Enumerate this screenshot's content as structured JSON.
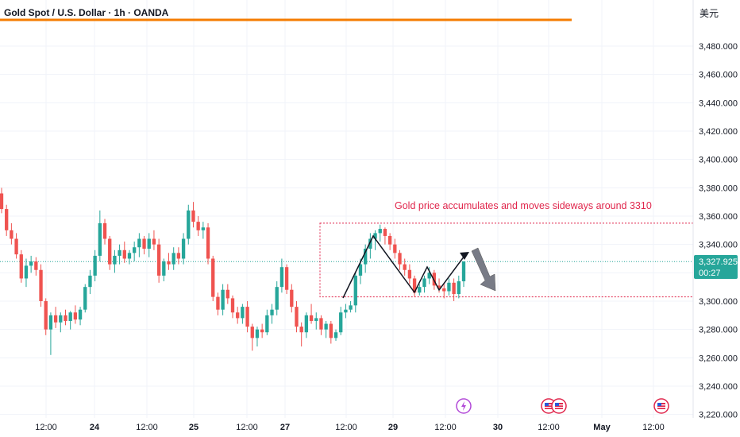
{
  "header": {
    "title": "Gold Spot / U.S. Dollar · 1h · OANDA",
    "currency": "美元"
  },
  "annotation": {
    "text": "Gold price accumulates and moves sideways around 3310"
  },
  "price_label": {
    "value": "3,327.925",
    "countdown": "00:27"
  },
  "colors": {
    "up": "#26a69a",
    "down": "#ef5350",
    "annotation": "#e0264c",
    "price_line": "#26a69a",
    "header_line": "#f57c00",
    "grid": "#f0f3fa"
  },
  "icons": {
    "event_lightning": "lightning-icon",
    "event_us": "us-flag-icon"
  },
  "chart_data": {
    "type": "candlestick",
    "title": "Gold Spot / U.S. Dollar · 1h · OANDA",
    "y_ticks": [
      3220,
      3240,
      3260,
      3280,
      3300,
      3320,
      3340,
      3360,
      3380,
      3400,
      3420,
      3440,
      3460,
      3480
    ],
    "y_tick_labels": [
      "3,220.000",
      "3,240.000",
      "3,260.000",
      "3,280.000",
      "3,300.000",
      "3,320.000",
      "3,340.000",
      "3,360.000",
      "3,380.000",
      "3,400.000",
      "3,420.000",
      "3,440.000",
      "3,460.000",
      "3,480.000"
    ],
    "ylim": [
      3217,
      3493
    ],
    "x_tick_labels": [
      "12:00",
      "24",
      "12:00",
      "25",
      "12:00",
      "27",
      "12:00",
      "29",
      "12:00",
      "30",
      "12:00",
      "May",
      "12:00"
    ],
    "x_tick_bold": [
      false,
      true,
      false,
      true,
      false,
      true,
      false,
      true,
      false,
      true,
      false,
      true,
      false
    ],
    "last_price": 3327.925,
    "box_range": {
      "y_top": 3355,
      "y_bottom": 3303
    },
    "candles_ohlc": [
      [
        3376,
        3380,
        3362,
        3365
      ],
      [
        3365,
        3368,
        3346,
        3350
      ],
      [
        3350,
        3355,
        3340,
        3344
      ],
      [
        3344,
        3348,
        3330,
        3333
      ],
      [
        3333,
        3336,
        3313,
        3316
      ],
      [
        3316,
        3330,
        3310,
        3325
      ],
      [
        3325,
        3332,
        3320,
        3328
      ],
      [
        3328,
        3331,
        3318,
        3322
      ],
      [
        3322,
        3326,
        3296,
        3300
      ],
      [
        3300,
        3302,
        3276,
        3280
      ],
      [
        3280,
        3292,
        3262,
        3290
      ],
      [
        3290,
        3296,
        3281,
        3285
      ],
      [
        3285,
        3292,
        3278,
        3290
      ],
      [
        3290,
        3294,
        3283,
        3286
      ],
      [
        3286,
        3293,
        3280,
        3292
      ],
      [
        3292,
        3297,
        3284,
        3287
      ],
      [
        3287,
        3296,
        3283,
        3294
      ],
      [
        3294,
        3312,
        3292,
        3310
      ],
      [
        3310,
        3322,
        3305,
        3318
      ],
      [
        3318,
        3336,
        3314,
        3332
      ],
      [
        3332,
        3364,
        3328,
        3355
      ],
      [
        3355,
        3358,
        3340,
        3344
      ],
      [
        3344,
        3346,
        3322,
        3326
      ],
      [
        3326,
        3336,
        3320,
        3332
      ],
      [
        3332,
        3340,
        3326,
        3336
      ],
      [
        3336,
        3342,
        3327,
        3330
      ],
      [
        3330,
        3336,
        3326,
        3334
      ],
      [
        3334,
        3342,
        3328,
        3338
      ],
      [
        3338,
        3348,
        3331,
        3344
      ],
      [
        3344,
        3346,
        3333,
        3337
      ],
      [
        3337,
        3348,
        3331,
        3344
      ],
      [
        3344,
        3350,
        3336,
        3340
      ],
      [
        3340,
        3344,
        3313,
        3318
      ],
      [
        3318,
        3330,
        3314,
        3328
      ],
      [
        3328,
        3334,
        3322,
        3326
      ],
      [
        3326,
        3338,
        3322,
        3334
      ],
      [
        3334,
        3338,
        3326,
        3330
      ],
      [
        3330,
        3348,
        3326,
        3344
      ],
      [
        3344,
        3368,
        3340,
        3364
      ],
      [
        3364,
        3370,
        3352,
        3356
      ],
      [
        3356,
        3360,
        3346,
        3350
      ],
      [
        3350,
        3356,
        3344,
        3352
      ],
      [
        3352,
        3355,
        3326,
        3330
      ],
      [
        3330,
        3332,
        3300,
        3303
      ],
      [
        3303,
        3306,
        3290,
        3294
      ],
      [
        3294,
        3312,
        3290,
        3308
      ],
      [
        3308,
        3312,
        3298,
        3302
      ],
      [
        3302,
        3304,
        3288,
        3292
      ],
      [
        3292,
        3296,
        3284,
        3288
      ],
      [
        3288,
        3298,
        3284,
        3296
      ],
      [
        3296,
        3300,
        3278,
        3282
      ],
      [
        3282,
        3284,
        3265,
        3274
      ],
      [
        3274,
        3282,
        3268,
        3280
      ],
      [
        3280,
        3284,
        3274,
        3278
      ],
      [
        3278,
        3294,
        3276,
        3290
      ],
      [
        3290,
        3298,
        3284,
        3294
      ],
      [
        3294,
        3314,
        3290,
        3310
      ],
      [
        3310,
        3330,
        3306,
        3324
      ],
      [
        3324,
        3326,
        3305,
        3308
      ],
      [
        3308,
        3312,
        3292,
        3296
      ],
      [
        3296,
        3300,
        3278,
        3282
      ],
      [
        3282,
        3285,
        3268,
        3278
      ],
      [
        3278,
        3292,
        3274,
        3290
      ],
      [
        3290,
        3298,
        3284,
        3286
      ],
      [
        3286,
        3292,
        3280,
        3288
      ],
      [
        3288,
        3290,
        3276,
        3280
      ],
      [
        3280,
        3286,
        3274,
        3284
      ],
      [
        3284,
        3286,
        3270,
        3274
      ],
      [
        3274,
        3280,
        3272,
        3278
      ],
      [
        3278,
        3296,
        3276,
        3292
      ],
      [
        3292,
        3298,
        3288,
        3294
      ],
      [
        3294,
        3300,
        3292,
        3297
      ],
      [
        3297,
        3320,
        3292,
        3318
      ],
      [
        3318,
        3330,
        3312,
        3326
      ],
      [
        3326,
        3340,
        3320,
        3337
      ],
      [
        3337,
        3348,
        3330,
        3344
      ],
      [
        3344,
        3350,
        3336,
        3348
      ],
      [
        3348,
        3354,
        3342,
        3351
      ],
      [
        3351,
        3352,
        3340,
        3346
      ],
      [
        3346,
        3348,
        3336,
        3340
      ],
      [
        3340,
        3344,
        3330,
        3334
      ],
      [
        3334,
        3336,
        3322,
        3326
      ],
      [
        3326,
        3330,
        3318,
        3322
      ],
      [
        3322,
        3326,
        3312,
        3316
      ],
      [
        3316,
        3318,
        3303,
        3306
      ],
      [
        3306,
        3312,
        3304,
        3310
      ],
      [
        3310,
        3318,
        3306,
        3316
      ],
      [
        3316,
        3324,
        3312,
        3320
      ],
      [
        3320,
        3322,
        3308,
        3311
      ],
      [
        3311,
        3316,
        3306,
        3309
      ],
      [
        3309,
        3312,
        3302,
        3307
      ],
      [
        3307,
        3316,
        3304,
        3313
      ],
      [
        3313,
        3316,
        3300,
        3305
      ],
      [
        3305,
        3318,
        3302,
        3314
      ],
      [
        3314,
        3328,
        3310,
        3328
      ]
    ]
  }
}
